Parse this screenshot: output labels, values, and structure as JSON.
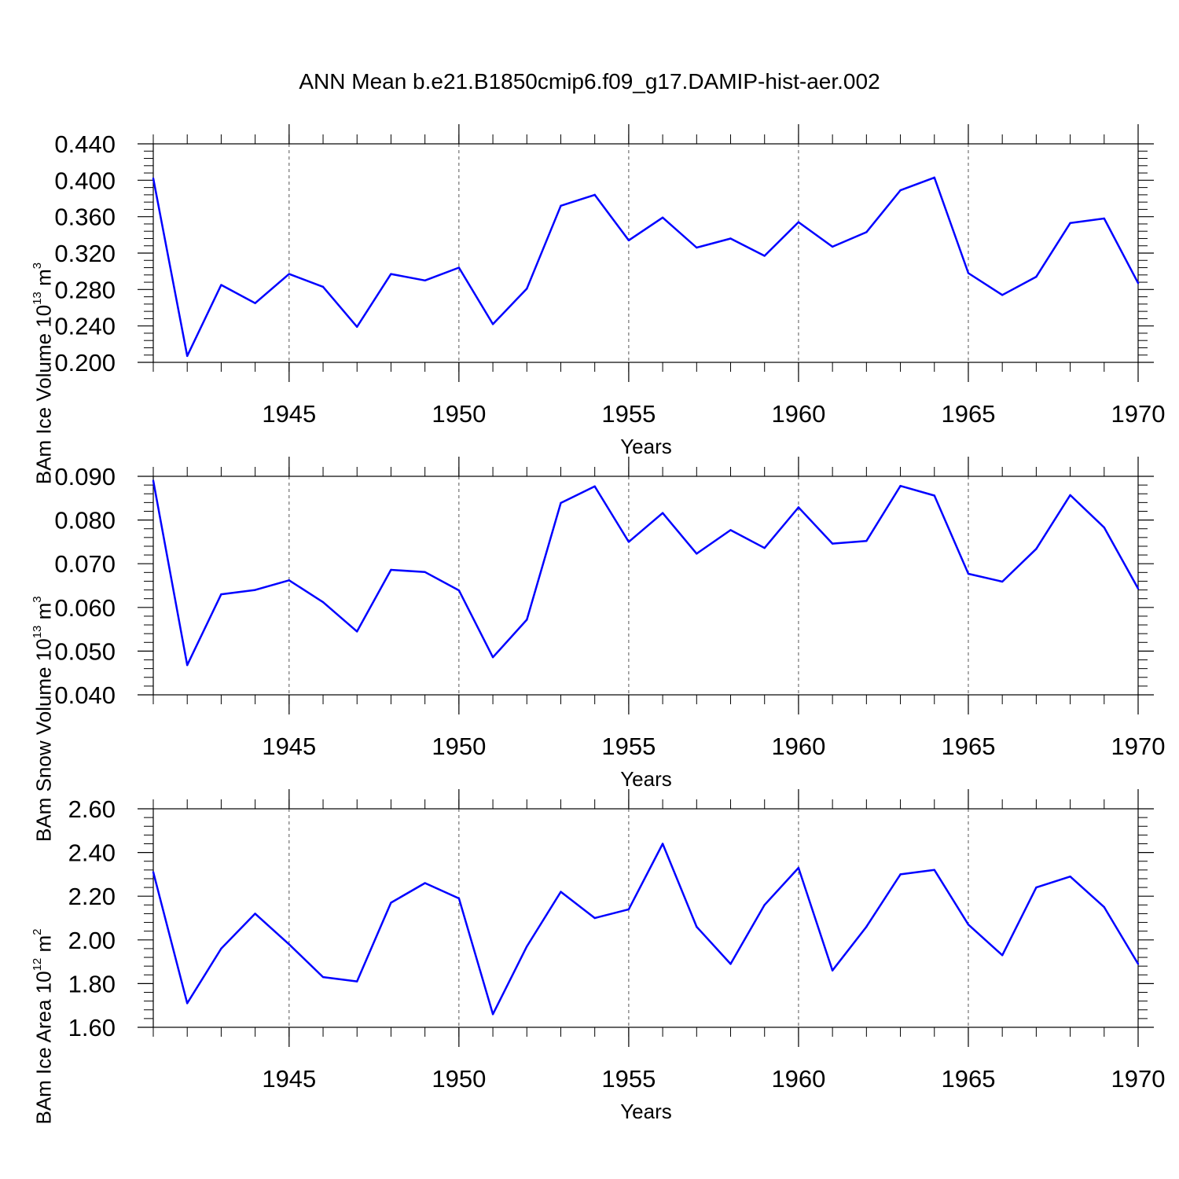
{
  "title": "ANN Mean b.e21.B1850cmip6.f09_g17.DAMIP-hist-aer.002",
  "line_color": "#0000ff",
  "chart_data": [
    {
      "type": "line",
      "ylabel": {
        "prefix": "BAm Ice Volume 10",
        "exp": "13",
        "unit": " m",
        "unit_exp": "3"
      },
      "xlabel": "Years",
      "xlim": [
        1941,
        1970
      ],
      "ylim": [
        0.2,
        0.44
      ],
      "yticks": [
        "0.200",
        "0.240",
        "0.280",
        "0.320",
        "0.360",
        "0.400",
        "0.440"
      ],
      "xticks": [
        "1945",
        "1950",
        "1955",
        "1960",
        "1965",
        "1970"
      ],
      "grid": "vertical-dashed-at-major-x-ticks",
      "x": [
        1941,
        1942,
        1943,
        1944,
        1945,
        1946,
        1947,
        1948,
        1949,
        1950,
        1951,
        1952,
        1953,
        1954,
        1955,
        1956,
        1957,
        1958,
        1959,
        1960,
        1961,
        1962,
        1963,
        1964,
        1965,
        1966,
        1967,
        1968,
        1969,
        1970
      ],
      "values": [
        0.402,
        0.207,
        0.285,
        0.265,
        0.297,
        0.283,
        0.239,
        0.297,
        0.29,
        0.304,
        0.242,
        0.281,
        0.372,
        0.384,
        0.334,
        0.359,
        0.326,
        0.336,
        0.317,
        0.354,
        0.327,
        0.343,
        0.389,
        0.403,
        0.298,
        0.274,
        0.294,
        0.353,
        0.358,
        0.287
      ]
    },
    {
      "type": "line",
      "ylabel": {
        "prefix": "BAm Snow Volume 10",
        "exp": "13",
        "unit": " m",
        "unit_exp": "3"
      },
      "xlabel": "Years",
      "xlim": [
        1941,
        1970
      ],
      "ylim": [
        0.04,
        0.09
      ],
      "yticks": [
        "0.040",
        "0.050",
        "0.060",
        "0.070",
        "0.080",
        "0.090"
      ],
      "xticks": [
        "1945",
        "1950",
        "1955",
        "1960",
        "1965",
        "1970"
      ],
      "grid": "vertical-dashed-at-major-x-ticks",
      "x": [
        1941,
        1942,
        1943,
        1944,
        1945,
        1946,
        1947,
        1948,
        1949,
        1950,
        1951,
        1952,
        1953,
        1954,
        1955,
        1956,
        1957,
        1958,
        1959,
        1960,
        1961,
        1962,
        1963,
        1964,
        1965,
        1966,
        1967,
        1968,
        1969,
        1970
      ],
      "values": [
        0.089,
        0.0468,
        0.063,
        0.064,
        0.0662,
        0.0612,
        0.0545,
        0.0686,
        0.0681,
        0.0639,
        0.0486,
        0.0572,
        0.0839,
        0.0877,
        0.075,
        0.0816,
        0.0723,
        0.0777,
        0.0736,
        0.0829,
        0.0746,
        0.0752,
        0.0878,
        0.0856,
        0.0677,
        0.0659,
        0.0734,
        0.0857,
        0.0783,
        0.0643
      ]
    },
    {
      "type": "line",
      "ylabel": {
        "prefix": "BAm Ice Area 10",
        "exp": "12",
        "unit": " m",
        "unit_exp": "2"
      },
      "xlabel": "Years",
      "xlim": [
        1941,
        1970
      ],
      "ylim": [
        1.6,
        2.6
      ],
      "yticks": [
        "1.60",
        "1.80",
        "2.00",
        "2.20",
        "2.40",
        "2.60"
      ],
      "xticks": [
        "1945",
        "1950",
        "1955",
        "1960",
        "1965",
        "1970"
      ],
      "grid": "vertical-dashed-at-major-x-ticks",
      "x": [
        1941,
        1942,
        1943,
        1944,
        1945,
        1946,
        1947,
        1948,
        1949,
        1950,
        1951,
        1952,
        1953,
        1954,
        1955,
        1956,
        1957,
        1958,
        1959,
        1960,
        1961,
        1962,
        1963,
        1964,
        1965,
        1966,
        1967,
        1968,
        1969,
        1970
      ],
      "values": [
        2.31,
        1.71,
        1.96,
        2.12,
        1.98,
        1.83,
        1.81,
        2.17,
        2.26,
        2.19,
        1.66,
        1.97,
        2.22,
        2.1,
        2.14,
        2.44,
        2.06,
        1.89,
        2.16,
        2.33,
        1.86,
        2.06,
        2.3,
        2.32,
        2.07,
        1.93,
        2.24,
        2.29,
        2.15,
        1.89
      ]
    }
  ]
}
